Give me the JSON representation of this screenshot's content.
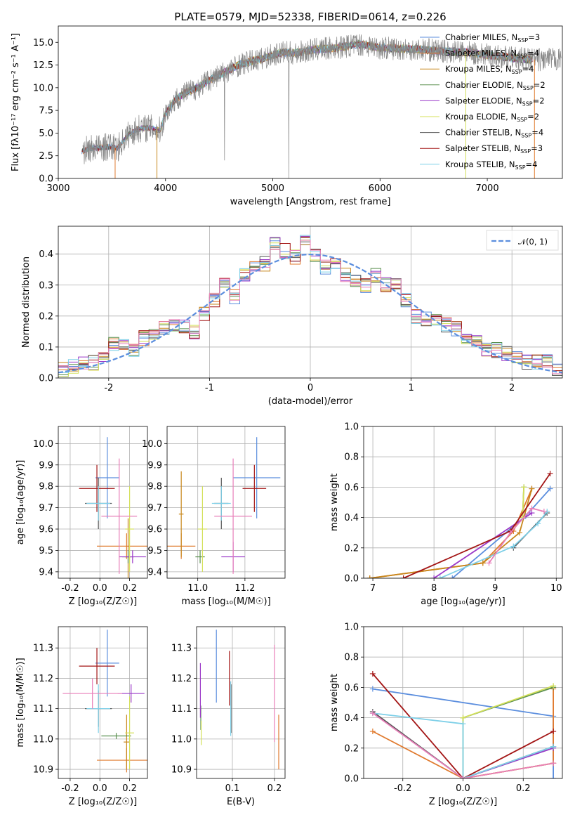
{
  "colors": {
    "Chabrier MILES": "#5b8ede",
    "Salpeter MILES": "#e07a2e",
    "Kroupa MILES": "#c8871c",
    "Chabrier ELODIE": "#5a8f4f",
    "Salpeter ELODIE": "#9b39c8",
    "Kroupa ELODIE": "#d4e05a",
    "Chabrier STELIB": "#555555",
    "Salpeter STELIB": "#a31515",
    "Kroupa STELIB": "#7fd0e8",
    "normal": "#5b8ede",
    "pink": "#e87fb9",
    "data": "#888888"
  },
  "chart_data": [
    {
      "id": "spectrum",
      "type": "line",
      "title": "PLATE=0579, MJD=52338, FIBERID=0614, z=0.226",
      "xlabel": "wavelength [Angstrom, rest frame]",
      "ylabel": "Flux [fλ10⁻¹⁷ erg cm⁻² s⁻¹ A⁻¹]",
      "xlim": [
        3000,
        7700
      ],
      "ylim": [
        0,
        16.8
      ],
      "xticks": [
        3000,
        4000,
        5000,
        6000,
        7000
      ],
      "yticks": [
        0.0,
        2.5,
        5.0,
        7.5,
        10.0,
        12.5,
        15.0
      ],
      "grid": false,
      "legend_position": "right",
      "legend": [
        {
          "label": "Chabrier MILES, N",
          "sub": "SSP",
          "suffix": "=3"
        },
        {
          "label": "Salpeter MILES, N",
          "sub": "SSP",
          "suffix": "=4"
        },
        {
          "label": "Kroupa MILES, N",
          "sub": "SSP",
          "suffix": "=4"
        },
        {
          "label": "Chabrier ELODIE, N",
          "sub": "SSP",
          "suffix": "=2"
        },
        {
          "label": "Salpeter ELODIE, N",
          "sub": "SSP",
          "suffix": "=2"
        },
        {
          "label": "Kroupa ELODIE, N",
          "sub": "SSP",
          "suffix": "=2"
        },
        {
          "label": "Chabrier STELIB, N",
          "sub": "SSP",
          "suffix": "=4"
        },
        {
          "label": "Salpeter STELIB, N",
          "sub": "SSP",
          "suffix": "=3"
        },
        {
          "label": "Kroupa STELIB, N",
          "sub": "SSP",
          "suffix": "=4"
        }
      ],
      "continuum": [
        [
          3220,
          3.0
        ],
        [
          3300,
          3.3
        ],
        [
          3400,
          3.4
        ],
        [
          3500,
          3.5
        ],
        [
          3550,
          3.3
        ],
        [
          3650,
          4.8
        ],
        [
          3750,
          5.5
        ],
        [
          3850,
          5.6
        ],
        [
          3950,
          5.3
        ],
        [
          4000,
          7.2
        ],
        [
          4100,
          8.8
        ],
        [
          4200,
          9.5
        ],
        [
          4300,
          10.0
        ],
        [
          4400,
          10.8
        ],
        [
          4500,
          11.4
        ],
        [
          4600,
          12.0
        ],
        [
          4700,
          12.6
        ],
        [
          4800,
          12.9
        ],
        [
          4900,
          13.2
        ],
        [
          5000,
          13.6
        ],
        [
          5100,
          13.9
        ],
        [
          5200,
          13.8
        ],
        [
          5300,
          14.0
        ],
        [
          5400,
          14.2
        ],
        [
          5500,
          14.3
        ],
        [
          5600,
          14.4
        ],
        [
          5700,
          14.6
        ],
        [
          5800,
          14.8
        ],
        [
          5900,
          14.6
        ],
        [
          6000,
          14.4
        ],
        [
          6200,
          14.3
        ],
        [
          6400,
          14.2
        ],
        [
          6600,
          14.0
        ],
        [
          6800,
          13.9
        ],
        [
          7000,
          13.6
        ],
        [
          7200,
          13.3
        ],
        [
          7400,
          13.1
        ]
      ]
    },
    {
      "id": "residuals",
      "type": "line",
      "xlabel": "(data-model)/error",
      "ylabel": "Normed distribution",
      "xlim": [
        -2.5,
        2.5
      ],
      "ylim": [
        0,
        0.49
      ],
      "xticks": [
        -2,
        -1,
        0,
        1,
        2
      ],
      "yticks": [
        0.0,
        0.1,
        0.2,
        0.3,
        0.4
      ],
      "grid": true,
      "legend_position": "top-right",
      "legend_label": "𝒩(0, 1)",
      "bins": [
        -2.5,
        -2.4,
        -2.3,
        -2.2,
        -2.1,
        -2.0,
        -1.9,
        -1.8,
        -1.7,
        -1.6,
        -1.5,
        -1.4,
        -1.3,
        -1.2,
        -1.1,
        -1.0,
        -0.9,
        -0.8,
        -0.7,
        -0.6,
        -0.5,
        -0.4,
        -0.3,
        -0.2,
        -0.1,
        0.0,
        0.1,
        0.2,
        0.3,
        0.4,
        0.5,
        0.6,
        0.7,
        0.8,
        0.9,
        1.0,
        1.1,
        1.2,
        1.3,
        1.4,
        1.5,
        1.6,
        1.7,
        1.8,
        1.9,
        2.0,
        2.1,
        2.2,
        2.3,
        2.4,
        2.5
      ],
      "hist_base": [
        0.03,
        0.04,
        0.05,
        0.05,
        0.06,
        0.11,
        0.1,
        0.09,
        0.13,
        0.14,
        0.16,
        0.17,
        0.17,
        0.15,
        0.21,
        0.25,
        0.3,
        0.26,
        0.33,
        0.36,
        0.37,
        0.44,
        0.41,
        0.39,
        0.44,
        0.4,
        0.36,
        0.37,
        0.33,
        0.32,
        0.3,
        0.33,
        0.3,
        0.3,
        0.25,
        0.2,
        0.19,
        0.18,
        0.17,
        0.16,
        0.13,
        0.12,
        0.09,
        0.09,
        0.08,
        0.07,
        0.05,
        0.05,
        0.05,
        0.03
      ]
    },
    {
      "id": "age-vs-Z",
      "type": "scatter",
      "xlabel": "Z [log₁₀(Z/Z☉)]",
      "ylabel": "age  [log₁₀(age/yr)]",
      "xlim": [
        -0.28,
        0.32
      ],
      "ylim": [
        9.37,
        10.08
      ],
      "xticks": [
        -0.2,
        0.0,
        0.2
      ],
      "yticks": [
        9.4,
        9.5,
        9.6,
        9.7,
        9.8,
        9.9,
        10.0
      ],
      "grid": true,
      "points": [
        {
          "series": "Chabrier MILES",
          "x": 0.05,
          "y": 9.84,
          "xerr": 0.08,
          "yerr": 0.19
        },
        {
          "series": "Salpeter MILES",
          "x": 0.18,
          "y": 9.52,
          "xerr": 0.2,
          "yerr": 0.06
        },
        {
          "series": "Kroupa MILES",
          "x": 0.19,
          "y": 9.47,
          "xerr": 0.02,
          "yerr": 0.18
        },
        {
          "series": "Chabrier ELODIE",
          "x": 0.19,
          "y": 9.47,
          "xerr": 0.04,
          "yerr": 0.03
        },
        {
          "series": "Salpeter ELODIE",
          "x": 0.22,
          "y": 9.47,
          "xerr": 0.09,
          "yerr": 0.03
        },
        {
          "series": "Kroupa ELODIE",
          "x": 0.2,
          "y": 9.6,
          "xerr": 0.03,
          "yerr": 0.2
        },
        {
          "series": "Chabrier STELIB",
          "x": -0.01,
          "y": 9.72,
          "xerr": 0.09,
          "yerr": 0.12
        },
        {
          "series": "Salpeter STELIB",
          "x": -0.02,
          "y": 9.79,
          "xerr": 0.12,
          "yerr": 0.11
        },
        {
          "series": "Kroupa STELIB",
          "x": -0.01,
          "y": 9.72,
          "xerr": 0.08,
          "yerr": 0.08
        },
        {
          "series": "pink",
          "x": 0.13,
          "y": 9.66,
          "xerr": 0.12,
          "yerr": 0.27
        }
      ]
    },
    {
      "id": "age-vs-mass",
      "type": "scatter",
      "xlabel": "mass [log₁₀(M/M☉)]",
      "xlim": [
        10.87,
        11.37
      ],
      "ylim": [
        9.37,
        10.08
      ],
      "xticks": [
        11.0,
        11.2
      ],
      "yticks": [
        9.4,
        9.5,
        9.6,
        9.7,
        9.8,
        9.9,
        10.0
      ],
      "grid": true,
      "points": [
        {
          "series": "Chabrier MILES",
          "x": 11.25,
          "y": 9.84,
          "xerr": 0.1,
          "yerr": 0.19
        },
        {
          "series": "Salpeter MILES",
          "x": 10.93,
          "y": 9.52,
          "xerr": 0.06,
          "yerr": 0.06
        },
        {
          "series": "Kroupa MILES",
          "x": 10.93,
          "y": 9.67,
          "xerr": 0.01,
          "yerr": 0.2
        },
        {
          "series": "Chabrier ELODIE",
          "x": 11.01,
          "y": 9.47,
          "xerr": 0.02,
          "yerr": 0.03
        },
        {
          "series": "Salpeter ELODIE",
          "x": 11.15,
          "y": 9.47,
          "xerr": 0.05,
          "yerr": 0.07
        },
        {
          "series": "Kroupa ELODIE",
          "x": 11.02,
          "y": 9.6,
          "xerr": 0.02,
          "yerr": 0.2
        },
        {
          "series": "Chabrier STELIB",
          "x": 11.1,
          "y": 9.72,
          "xerr": 0.03,
          "yerr": 0.12
        },
        {
          "series": "Salpeter STELIB",
          "x": 11.24,
          "y": 9.79,
          "xerr": 0.05,
          "yerr": 0.11
        },
        {
          "series": "Kroupa STELIB",
          "x": 11.1,
          "y": 9.72,
          "xerr": 0.04,
          "yerr": 0.08
        },
        {
          "series": "pink",
          "x": 11.15,
          "y": 9.66,
          "xerr": 0.08,
          "yerr": 0.27
        }
      ]
    },
    {
      "id": "massweight-vs-age",
      "type": "line",
      "xlabel": "age  [log₁₀(age/yr)]",
      "ylabel": "mass weight",
      "xlim": [
        6.85,
        10.1
      ],
      "ylim": [
        0,
        1.0
      ],
      "xticks": [
        7,
        8,
        9,
        10
      ],
      "yticks": [
        0.0,
        0.2,
        0.4,
        0.6,
        0.8,
        1.0
      ],
      "grid": true,
      "series": [
        {
          "name": "Chabrier MILES",
          "x": [
            8.3,
            9.5,
            9.9
          ],
          "y": [
            0.0,
            0.41,
            0.59
          ]
        },
        {
          "name": "Salpeter MILES",
          "x": [
            6.95,
            8.8,
            9.3,
            9.6
          ],
          "y": [
            0.0,
            0.1,
            0.31,
            0.59
          ]
        },
        {
          "name": "Kroupa MILES",
          "x": [
            6.95,
            8.8,
            9.4,
            9.6
          ],
          "y": [
            0.0,
            0.1,
            0.3,
            0.59
          ]
        },
        {
          "name": "Chabrier ELODIE",
          "x": [
            9.45,
            9.47
          ],
          "y": [
            0.4,
            0.6
          ]
        },
        {
          "name": "Salpeter ELODIE",
          "x": [
            8.0,
            9.6
          ],
          "y": [
            0.0,
            0.43
          ]
        },
        {
          "name": "Kroupa ELODIE",
          "x": [
            9.45,
            9.47
          ],
          "y": [
            0.4,
            0.6
          ]
        },
        {
          "name": "Chabrier STELIB",
          "x": [
            9.3,
            9.85
          ],
          "y": [
            0.2,
            0.43
          ]
        },
        {
          "name": "Salpeter STELIB",
          "x": [
            7.5,
            9.25,
            9.9
          ],
          "y": [
            0.0,
            0.31,
            0.69
          ]
        },
        {
          "name": "Kroupa STELIB",
          "x": [
            8.1,
            9.3,
            9.7,
            9.85
          ],
          "y": [
            0.0,
            0.21,
            0.36,
            0.44
          ]
        },
        {
          "name": "pink",
          "x": [
            8.9,
            9.25,
            9.6,
            9.8
          ],
          "y": [
            0.1,
            0.3,
            0.46,
            0.44
          ]
        }
      ]
    },
    {
      "id": "mass-vs-Z",
      "type": "scatter",
      "xlabel": "Z [log₁₀(Z/Z☉)]",
      "ylabel": "mass [log₁₀(M/M☉)]",
      "xlim": [
        -0.28,
        0.32
      ],
      "ylim": [
        10.87,
        11.37
      ],
      "xticks": [
        -0.2,
        0.0,
        0.2
      ],
      "yticks": [
        10.9,
        11.0,
        11.1,
        11.2,
        11.3
      ],
      "grid": true,
      "points": [
        {
          "series": "Chabrier MILES",
          "x": 0.05,
          "y": 11.25,
          "xerr": 0.08,
          "yerr": 0.11
        },
        {
          "series": "Salpeter MILES",
          "x": 0.18,
          "y": 10.93,
          "xerr": 0.2,
          "yerr": 0.04
        },
        {
          "series": "Kroupa MILES",
          "x": 0.18,
          "y": 10.99,
          "xerr": 0.02,
          "yerr": 0.09
        },
        {
          "series": "Chabrier ELODIE",
          "x": 0.11,
          "y": 11.01,
          "xerr": 0.1,
          "yerr": 0.01
        },
        {
          "series": "Salpeter ELODIE",
          "x": 0.21,
          "y": 11.15,
          "xerr": 0.09,
          "yerr": 0.03
        },
        {
          "series": "Kroupa ELODIE",
          "x": 0.2,
          "y": 11.02,
          "xerr": 0.03,
          "yerr": 0.12
        },
        {
          "series": "Chabrier STELIB",
          "x": -0.01,
          "y": 11.1,
          "xerr": 0.09,
          "yerr": 0.06
        },
        {
          "series": "Salpeter STELIB",
          "x": -0.02,
          "y": 11.24,
          "xerr": 0.12,
          "yerr": 0.06
        },
        {
          "series": "Kroupa STELIB",
          "x": -0.01,
          "y": 11.1,
          "xerr": 0.08,
          "yerr": 0.08
        },
        {
          "series": "pink",
          "x": -0.05,
          "y": 11.15,
          "xerr": 0.2,
          "yerr": 0.05
        }
      ]
    },
    {
      "id": "mass-vs-EBV",
      "type": "scatter",
      "xlabel": "E(B-V)",
      "xlim": [
        0.015,
        0.225
      ],
      "ylim": [
        10.87,
        11.37
      ],
      "xticks": [
        0.1,
        0.2
      ],
      "yticks": [
        10.9,
        11.0,
        11.1,
        11.2,
        11.3
      ],
      "grid": true,
      "points": [
        {
          "series": "Chabrier MILES",
          "x": 0.062,
          "y": 11.24,
          "xerr": 0,
          "yerr": 0.12
        },
        {
          "series": "Salpeter MILES",
          "x": 0.21,
          "y": 10.99,
          "xerr": 0,
          "yerr": 0.09
        },
        {
          "series": "Chabrier ELODIE",
          "x": 0.025,
          "y": 11.07,
          "xerr": 0,
          "yerr": 0.04
        },
        {
          "series": "Salpeter ELODIE",
          "x": 0.024,
          "y": 11.16,
          "xerr": 0,
          "yerr": 0.09
        },
        {
          "series": "Kroupa ELODIE",
          "x": 0.026,
          "y": 11.02,
          "xerr": 0,
          "yerr": 0.04
        },
        {
          "series": "Chabrier STELIB",
          "x": 0.097,
          "y": 11.1,
          "xerr": 0,
          "yerr": 0.08
        },
        {
          "series": "Salpeter STELIB",
          "x": 0.093,
          "y": 11.2,
          "xerr": 0,
          "yerr": 0.09
        },
        {
          "series": "Kroupa STELIB",
          "x": 0.096,
          "y": 11.1,
          "xerr": 0,
          "yerr": 0.09
        },
        {
          "series": "pink",
          "x": 0.2,
          "y": 11.15,
          "xerr": 0,
          "yerr": 0.16
        }
      ]
    },
    {
      "id": "massweight-vs-Z",
      "type": "line",
      "xlabel": "Z [log₁₀(Z/Z☉)]",
      "ylabel": "mass weight",
      "xlim": [
        -0.33,
        0.33
      ],
      "ylim": [
        0,
        1.0
      ],
      "xticks": [
        -0.2,
        0.0,
        0.2
      ],
      "yticks": [
        0.0,
        0.2,
        0.4,
        0.6,
        0.8,
        1.0
      ],
      "grid": true,
      "series": [
        {
          "name": "Chabrier MILES",
          "x": [
            -0.3,
            0.3,
            0.3
          ],
          "y": [
            0.59,
            0.41,
            0.0
          ]
        },
        {
          "name": "Salpeter MILES",
          "x": [
            -0.3,
            0.0,
            0.3,
            0.3
          ],
          "y": [
            0.31,
            0.0,
            0.1,
            0.59
          ]
        },
        {
          "name": "Kroupa MILES",
          "x": [
            0.0,
            0.3
          ],
          "y": [
            0.0,
            0.1
          ]
        },
        {
          "name": "Chabrier ELODIE",
          "x": [
            0.0,
            0.0,
            0.3
          ],
          "y": [
            0.0,
            0.4,
            0.6
          ]
        },
        {
          "name": "Salpeter ELODIE",
          "x": [
            0.0,
            0.3
          ],
          "y": [
            0.0,
            0.2
          ]
        },
        {
          "name": "Kroupa ELODIE",
          "x": [
            0.0,
            0.0,
            0.3
          ],
          "y": [
            0.0,
            0.4,
            0.61
          ]
        },
        {
          "name": "Chabrier STELIB",
          "x": [
            -0.3,
            0.0,
            0.3
          ],
          "y": [
            0.44,
            0.0,
            0.21
          ]
        },
        {
          "name": "Salpeter STELIB",
          "x": [
            -0.3,
            0.0,
            0.3
          ],
          "y": [
            0.69,
            0.0,
            0.31
          ]
        },
        {
          "name": "Kroupa STELIB",
          "x": [
            -0.3,
            0.0,
            0.0,
            0.0,
            0.3
          ],
          "y": [
            0.43,
            0.36,
            0.0,
            0.0,
            0.21
          ]
        },
        {
          "name": "pink",
          "x": [
            -0.3,
            0.0,
            0.3
          ],
          "y": [
            0.43,
            0.0,
            0.1
          ]
        }
      ]
    }
  ]
}
